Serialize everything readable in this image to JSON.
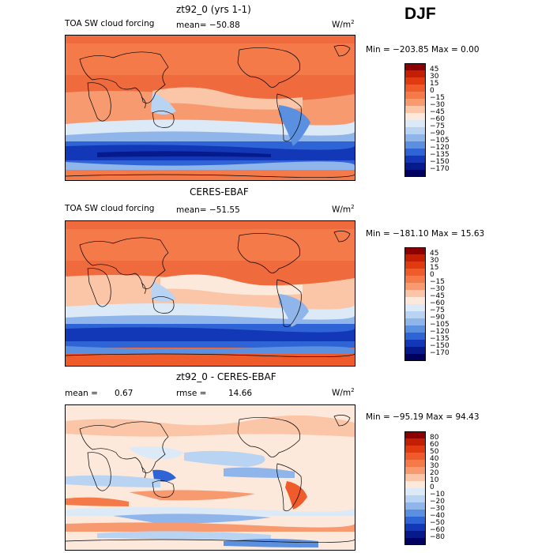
{
  "season": "DJF",
  "panels": [
    {
      "title": "zt92_0 (yrs 1-1)",
      "left_label": "TOA SW cloud forcing",
      "stat": "mean=  −50.88",
      "units": "W/m",
      "units_sup": "2",
      "minmax": "Min = −203.85 Max =    0.00",
      "levels": [
        "45",
        "30",
        "15",
        "0",
        "−15",
        "−30",
        "−45",
        "−60",
        "−75",
        "−90",
        "−105",
        "−120",
        "−135",
        "−150",
        "−170"
      ],
      "colors": [
        "#8b0000",
        "#c21f05",
        "#e03b10",
        "#ef5b2a",
        "#f47a4a",
        "#f79a70",
        "#fbc5a8",
        "#fde9dc",
        "#dce9f7",
        "#b9d3f2",
        "#8fb5ea",
        "#5b8fe0",
        "#2f64d6",
        "#1238b8",
        "#061a8c",
        "#000060"
      ]
    },
    {
      "title": "CERES-EBAF",
      "left_label": "TOA SW cloud forcing",
      "stat": "mean=  −51.55",
      "units": "W/m",
      "units_sup": "2",
      "minmax": "Min = −181.10 Max =   15.63",
      "levels": [
        "45",
        "30",
        "15",
        "0",
        "−15",
        "−30",
        "−45",
        "−60",
        "−75",
        "−90",
        "−105",
        "−120",
        "−135",
        "−150",
        "−170"
      ],
      "colors": [
        "#8b0000",
        "#c21f05",
        "#e03b10",
        "#ef5b2a",
        "#f47a4a",
        "#f79a70",
        "#fbc5a8",
        "#fde9dc",
        "#dce9f7",
        "#b9d3f2",
        "#8fb5ea",
        "#5b8fe0",
        "#2f64d6",
        "#1238b8",
        "#061a8c",
        "#000060"
      ]
    },
    {
      "title": "zt92_0 - CERES-EBAF",
      "mean_label": "mean =",
      "mean_value": "0.67",
      "rmse_label": "rmse =",
      "rmse_value": "14.66",
      "units": "W/m",
      "units_sup": "2",
      "minmax": "Min = −95.19 Max =  94.43",
      "levels": [
        "80",
        "60",
        "50",
        "40",
        "30",
        "20",
        "10",
        "0",
        "−10",
        "−20",
        "−30",
        "−40",
        "−50",
        "−60",
        "−80"
      ],
      "colors": [
        "#8b0000",
        "#c21f05",
        "#e03b10",
        "#ef5b2a",
        "#f47a4a",
        "#f79a70",
        "#fbc5a8",
        "#fde9dc",
        "#dce9f7",
        "#b9d3f2",
        "#8fb5ea",
        "#5b8fe0",
        "#2f64d6",
        "#1238b8",
        "#061a8c",
        "#000060"
      ]
    }
  ]
}
